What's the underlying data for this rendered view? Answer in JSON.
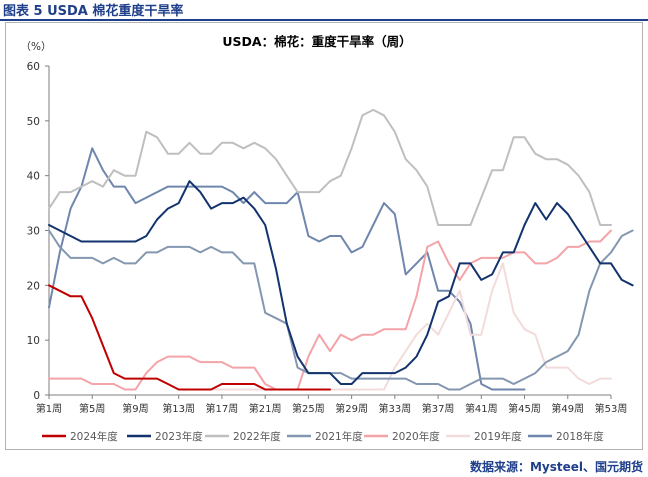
{
  "figure_title": "图表 5 USDA 棉花重度干旱率",
  "source": "数据来源：Mysteel、国元期货",
  "colors": {
    "accent": "#1f3f8a",
    "s2024": "#c00000",
    "s2023": "#13336e",
    "s2022": "#bfbfbf",
    "s2021": "#8497b0",
    "s2020": "#f4a3a8",
    "s2019": "#f2dcdb",
    "s2018": "#6f86ad"
  },
  "chart_data": {
    "type": "line",
    "title": "USDA：棉花：重度干旱率（周）",
    "ylabel": "（%）",
    "xlabel": "",
    "ylim": [
      0,
      60
    ],
    "yticks": [
      0,
      10,
      20,
      30,
      40,
      50,
      60
    ],
    "xlim": [
      1,
      53
    ],
    "xticks": [
      {
        "week": 1,
        "label": "第1周"
      },
      {
        "week": 5,
        "label": "第5周"
      },
      {
        "week": 9,
        "label": "第9周"
      },
      {
        "week": 13,
        "label": "第13周"
      },
      {
        "week": 17,
        "label": "第17周"
      },
      {
        "week": 21,
        "label": "第21周"
      },
      {
        "week": 25,
        "label": "第25周"
      },
      {
        "week": 29,
        "label": "第29周"
      },
      {
        "week": 33,
        "label": "第33周"
      },
      {
        "week": 37,
        "label": "第37周"
      },
      {
        "week": 41,
        "label": "第41周"
      },
      {
        "week": 45,
        "label": "第45周"
      },
      {
        "week": 49,
        "label": "第49周"
      },
      {
        "week": 53,
        "label": "第53周"
      }
    ],
    "grid": false,
    "legend_position": "bottom",
    "series": [
      {
        "name": "2024年度",
        "color": "#c00000",
        "start_week": 1,
        "values": [
          20,
          19,
          18,
          18,
          14,
          9,
          4,
          3,
          3,
          3,
          3,
          2,
          1,
          1,
          1,
          1,
          2,
          2,
          2,
          2,
          1,
          1,
          1,
          1,
          1,
          1,
          1
        ]
      },
      {
        "name": "2023年度",
        "color": "#13336e",
        "start_week": 1,
        "values": [
          31,
          30,
          29,
          28,
          28,
          28,
          28,
          28,
          28,
          29,
          32,
          34,
          35,
          39,
          37,
          34,
          35,
          35,
          36,
          34,
          31,
          23,
          13,
          7,
          4,
          4,
          4,
          2,
          2,
          4,
          4,
          4,
          4,
          5,
          7,
          11,
          17,
          18,
          24,
          24,
          21,
          22,
          26,
          26,
          31,
          35,
          32,
          35,
          33,
          30,
          27,
          24,
          24,
          21,
          20
        ]
      },
      {
        "name": "2022年度",
        "color": "#bfbfbf",
        "start_week": 1,
        "values": [
          34,
          37,
          37,
          38,
          39,
          38,
          41,
          40,
          40,
          48,
          47,
          44,
          44,
          46,
          44,
          44,
          46,
          46,
          45,
          46,
          45,
          43,
          40,
          37,
          37,
          37,
          39,
          40,
          45,
          51,
          52,
          51,
          48,
          43,
          41,
          38,
          31,
          31,
          31,
          31,
          36,
          41,
          41,
          47,
          47,
          44,
          43,
          43,
          42,
          40,
          37,
          31,
          31
        ]
      },
      {
        "name": "2021年度",
        "color": "#8497b0",
        "start_week": 1,
        "values": [
          30,
          27,
          25,
          25,
          25,
          24,
          25,
          24,
          24,
          26,
          26,
          27,
          27,
          27,
          26,
          27,
          26,
          26,
          24,
          24,
          15,
          14,
          13,
          5,
          4,
          4,
          4,
          4,
          3,
          3,
          3,
          3,
          3,
          3,
          2,
          2,
          2,
          1,
          1,
          2,
          3,
          3,
          3,
          2,
          3,
          4,
          6,
          7,
          8,
          11,
          19,
          24,
          26,
          29,
          30
        ]
      },
      {
        "name": "2020年度",
        "color": "#f4a3a8",
        "start_week": 1,
        "values": [
          3,
          3,
          3,
          3,
          2,
          2,
          2,
          1,
          1,
          4,
          6,
          7,
          7,
          7,
          6,
          6,
          6,
          5,
          5,
          5,
          2,
          1,
          1,
          1,
          7,
          11,
          8,
          11,
          10,
          11,
          11,
          12,
          12,
          12,
          18,
          27,
          28,
          24,
          21,
          24,
          25,
          25,
          25,
          26,
          26,
          24,
          24,
          25,
          27,
          27,
          28,
          28,
          30
        ]
      },
      {
        "name": "2019年度",
        "color": "#f2dcdb",
        "start_week": 1,
        "values": [
          null,
          null,
          null,
          null,
          null,
          null,
          null,
          null,
          null,
          null,
          null,
          null,
          1,
          1,
          1,
          1,
          1,
          1,
          1,
          1,
          1,
          1,
          1,
          1,
          1,
          1,
          1,
          1,
          1,
          1,
          1,
          1,
          5,
          8,
          11,
          13,
          11,
          15,
          19,
          11,
          11,
          19,
          24,
          15,
          12,
          11,
          5,
          5,
          5,
          3,
          2,
          3,
          3
        ]
      },
      {
        "name": "2018年度",
        "color": "#6f86ad",
        "start_week": 1,
        "values": [
          16,
          26,
          34,
          38,
          45,
          41,
          38,
          38,
          35,
          36,
          37,
          38,
          38,
          38,
          38,
          38,
          38,
          37,
          35,
          37,
          35,
          35,
          35,
          37,
          29,
          28,
          29,
          29,
          26,
          27,
          31,
          35,
          33,
          22,
          24,
          26,
          19,
          19,
          17,
          13,
          2,
          1,
          1,
          1,
          1,
          null,
          null,
          null,
          null,
          null,
          null,
          null,
          null
        ]
      }
    ]
  }
}
